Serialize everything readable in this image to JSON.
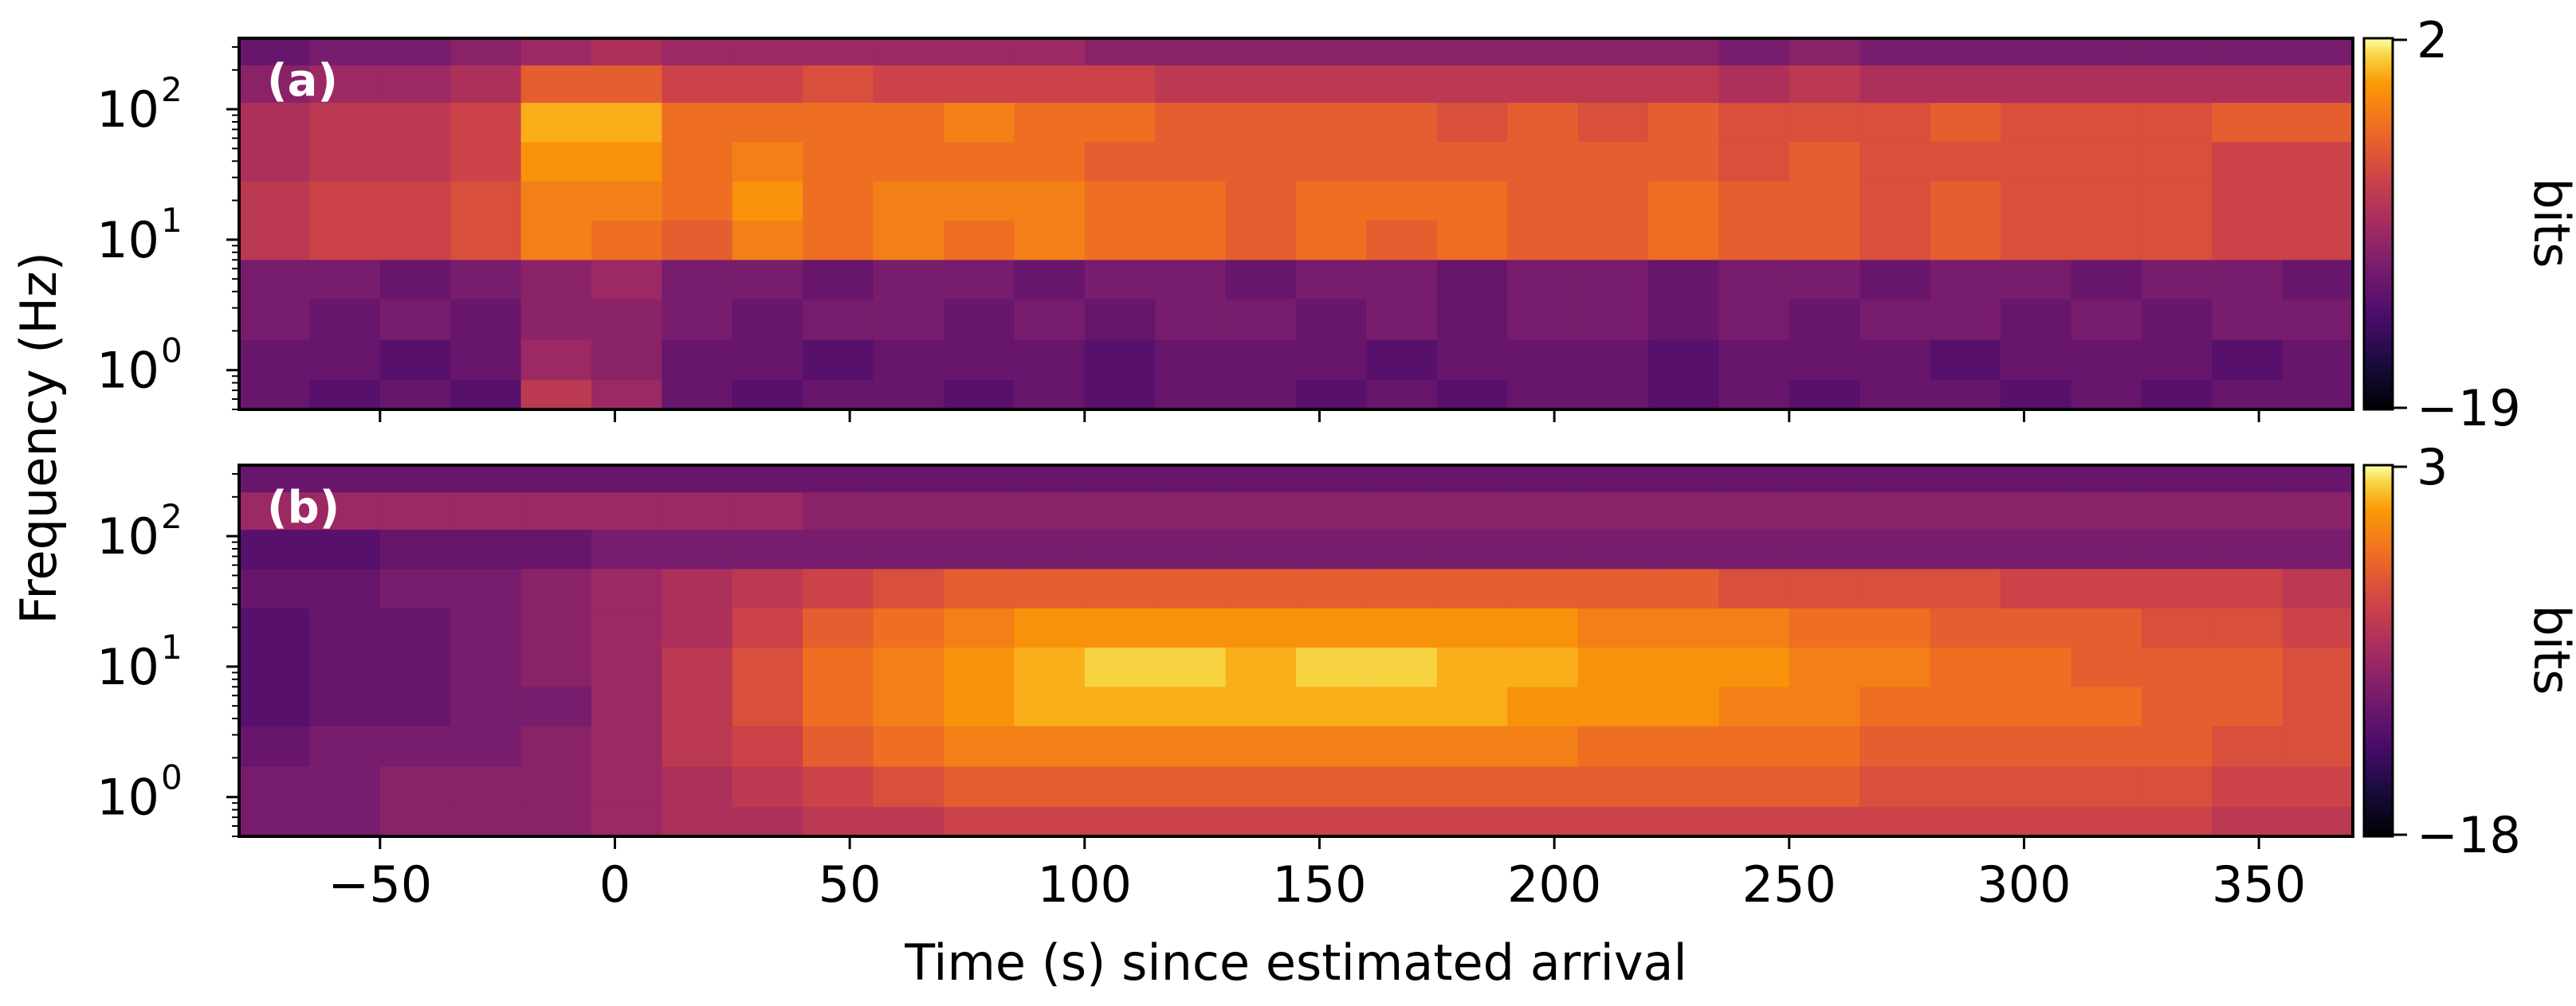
{
  "chart_data": [
    {
      "type": "heatmap",
      "panel_label": "(a)",
      "x_range": [
        -80,
        370
      ],
      "y_scale": "log",
      "y_range": [
        0.5,
        350
      ],
      "y_ticks": [
        1,
        10,
        100
      ],
      "y_tick_labels": [
        "10",
        "10",
        "10"
      ],
      "y_tick_exponents": [
        "0",
        "1",
        "2"
      ],
      "colorbar": {
        "min": -19,
        "max": 2,
        "min_label": "−19",
        "max_label": "2",
        "label": "bits",
        "colormap": "inferno"
      },
      "cells_approx": {
        "time_start": -80,
        "time_step": 15,
        "frequency_band_centers_hz": [
          0.6,
          1.2,
          2.5,
          5,
          10,
          20,
          40,
          80,
          160,
          300
        ],
        "values_bits": [
          [
            -12,
            -13,
            -12,
            -13,
            -7,
            -9,
            -12,
            -13,
            -12,
            -12,
            -13,
            -12,
            -13,
            -12,
            -12,
            -13,
            -12,
            -13,
            -12,
            -12,
            -13,
            -12,
            -13,
            -12,
            -12,
            -13,
            -12,
            -13,
            -12,
            -12
          ],
          [
            -12,
            -12,
            -13,
            -12,
            -9,
            -10,
            -12,
            -12,
            -13,
            -12,
            -12,
            -12,
            -13,
            -12,
            -12,
            -12,
            -13,
            -12,
            -12,
            -12,
            -13,
            -12,
            -12,
            -12,
            -13,
            -12,
            -12,
            -12,
            -13,
            -12
          ],
          [
            -11,
            -12,
            -11,
            -12,
            -10,
            -10,
            -11,
            -12,
            -11,
            -11,
            -12,
            -11,
            -12,
            -11,
            -11,
            -12,
            -11,
            -12,
            -11,
            -11,
            -12,
            -11,
            -12,
            -11,
            -11,
            -12,
            -11,
            -12,
            -11,
            -11
          ],
          [
            -11,
            -11,
            -12,
            -11,
            -10,
            -9,
            -11,
            -11,
            -12,
            -11,
            -11,
            -12,
            -11,
            -11,
            -12,
            -11,
            -11,
            -12,
            -11,
            -11,
            -12,
            -11,
            -11,
            -12,
            -11,
            -11,
            -12,
            -11,
            -11,
            -12
          ],
          [
            -7,
            -6,
            -6,
            -5,
            -2,
            -3,
            -4,
            -2,
            -3,
            -2,
            -3,
            -2,
            -3,
            -3,
            -4,
            -3,
            -4,
            -3,
            -4,
            -4,
            -3,
            -4,
            -4,
            -5,
            -4,
            -5,
            -5,
            -5,
            -6,
            -6
          ],
          [
            -7,
            -6,
            -6,
            -5,
            -2,
            -2,
            -3,
            -1,
            -3,
            -2,
            -2,
            -2,
            -3,
            -3,
            -4,
            -3,
            -3,
            -3,
            -4,
            -4,
            -3,
            -4,
            -4,
            -5,
            -4,
            -5,
            -5,
            -5,
            -6,
            -6
          ],
          [
            -8,
            -7,
            -7,
            -6,
            -1,
            -1,
            -3,
            -2,
            -3,
            -3,
            -3,
            -3,
            -4,
            -4,
            -4,
            -4,
            -4,
            -4,
            -4,
            -4,
            -4,
            -5,
            -4,
            -5,
            -5,
            -5,
            -5,
            -5,
            -6,
            -6
          ],
          [
            -8,
            -7,
            -7,
            -6,
            0,
            0,
            -3,
            -3,
            -3,
            -3,
            -2,
            -3,
            -3,
            -4,
            -4,
            -4,
            -4,
            -5,
            -4,
            -5,
            -4,
            -5,
            -5,
            -5,
            -4,
            -5,
            -5,
            -5,
            -4,
            -4
          ],
          [
            -10,
            -9,
            -9,
            -8,
            -4,
            -4,
            -6,
            -6,
            -5,
            -6,
            -6,
            -6,
            -6,
            -7,
            -7,
            -7,
            -7,
            -7,
            -7,
            -7,
            -7,
            -8,
            -7,
            -8,
            -8,
            -8,
            -8,
            -8,
            -8,
            -8
          ],
          [
            -12,
            -11,
            -11,
            -10,
            -9,
            -8,
            -9,
            -9,
            -9,
            -9,
            -9,
            -9,
            -10,
            -10,
            -10,
            -10,
            -10,
            -10,
            -10,
            -10,
            -10,
            -11,
            -10,
            -11,
            -11,
            -11,
            -11,
            -11,
            -11,
            -11
          ]
        ]
      }
    },
    {
      "type": "heatmap",
      "panel_label": "(b)",
      "x_range": [
        -80,
        370
      ],
      "y_scale": "log",
      "y_range": [
        0.5,
        350
      ],
      "y_ticks": [
        1,
        10,
        100
      ],
      "y_tick_labels": [
        "10",
        "10",
        "10"
      ],
      "y_tick_exponents": [
        "0",
        "1",
        "2"
      ],
      "colorbar": {
        "min": -18,
        "max": 3,
        "min_label": "−18",
        "max_label": "3",
        "label": "bits",
        "colormap": "inferno"
      },
      "cells_approx": {
        "time_start": -80,
        "time_step": 15,
        "frequency_band_centers_hz": [
          0.6,
          1.2,
          2.5,
          5,
          10,
          20,
          40,
          80,
          160,
          300
        ],
        "values_bits": [
          [
            -10,
            -10,
            -9,
            -9,
            -9,
            -8,
            -7,
            -7,
            -6,
            -6,
            -5,
            -5,
            -5,
            -5,
            -5,
            -5,
            -5,
            -5,
            -5,
            -5,
            -5,
            -5,
            -5,
            -5,
            -5,
            -5,
            -5,
            -5,
            -6,
            -6
          ],
          [
            -10,
            -10,
            -9,
            -9,
            -9,
            -8,
            -7,
            -6,
            -5,
            -4,
            -3,
            -3,
            -3,
            -3,
            -3,
            -3,
            -3,
            -3,
            -3,
            -3,
            -3,
            -3,
            -3,
            -4,
            -4,
            -4,
            -4,
            -4,
            -5,
            -5
          ],
          [
            -11,
            -10,
            -10,
            -10,
            -9,
            -8,
            -6,
            -5,
            -3,
            -2,
            -1,
            -1,
            -1,
            -1,
            -1,
            -1,
            -1,
            -1,
            -1,
            -2,
            -2,
            -2,
            -2,
            -3,
            -3,
            -3,
            -3,
            -3,
            -4,
            -4
          ],
          [
            -12,
            -11,
            -11,
            -10,
            -10,
            -8,
            -6,
            -4,
            -2,
            -1,
            0,
            1,
            1,
            1,
            1,
            1,
            1,
            1,
            0,
            0,
            0,
            -1,
            -1,
            -2,
            -2,
            -2,
            -2,
            -3,
            -3,
            -4
          ],
          [
            -12,
            -11,
            -11,
            -10,
            -9,
            -8,
            -6,
            -4,
            -2,
            -1,
            0,
            1,
            2,
            2,
            1,
            2,
            2,
            1,
            1,
            0,
            0,
            0,
            -1,
            -1,
            -2,
            -2,
            -3,
            -3,
            -3,
            -4
          ],
          [
            -12,
            -11,
            -11,
            -10,
            -9,
            -8,
            -7,
            -5,
            -3,
            -2,
            -1,
            0,
            0,
            0,
            0,
            0,
            0,
            0,
            0,
            -1,
            -1,
            -1,
            -2,
            -2,
            -3,
            -3,
            -3,
            -4,
            -4,
            -5
          ],
          [
            -11,
            -11,
            -10,
            -10,
            -9,
            -8,
            -7,
            -6,
            -5,
            -4,
            -3,
            -3,
            -3,
            -3,
            -3,
            -3,
            -3,
            -3,
            -3,
            -3,
            -3,
            -4,
            -4,
            -4,
            -4,
            -5,
            -5,
            -5,
            -5,
            -6
          ],
          [
            -12,
            -12,
            -11,
            -11,
            -11,
            -10,
            -10,
            -10,
            -10,
            -10,
            -10,
            -10,
            -10,
            -10,
            -10,
            -10,
            -10,
            -10,
            -10,
            -10,
            -10,
            -10,
            -10,
            -10,
            -10,
            -10,
            -10,
            -10,
            -10,
            -10
          ],
          [
            -8,
            -8,
            -8,
            -8,
            -8,
            -8,
            -8,
            -8,
            -9,
            -9,
            -9,
            -9,
            -9,
            -9,
            -9,
            -9,
            -9,
            -9,
            -9,
            -9,
            -9,
            -9,
            -9,
            -9,
            -9,
            -9,
            -9,
            -9,
            -9,
            -9
          ],
          [
            -11,
            -11,
            -11,
            -11,
            -11,
            -11,
            -11,
            -11,
            -11,
            -11,
            -11,
            -11,
            -11,
            -11,
            -11,
            -11,
            -11,
            -11,
            -11,
            -11,
            -11,
            -11,
            -11,
            -11,
            -11,
            -11,
            -11,
            -11,
            -11,
            -11
          ]
        ]
      }
    }
  ],
  "shared_axes": {
    "xlabel": "Time (s) since estimated arrival",
    "ylabel": "Frequency (Hz)",
    "x_ticks": [
      -50,
      0,
      50,
      100,
      150,
      200,
      250,
      300,
      350
    ],
    "x_tick_labels": [
      "−50",
      "0",
      "50",
      "100",
      "150",
      "200",
      "250",
      "300",
      "350"
    ]
  }
}
